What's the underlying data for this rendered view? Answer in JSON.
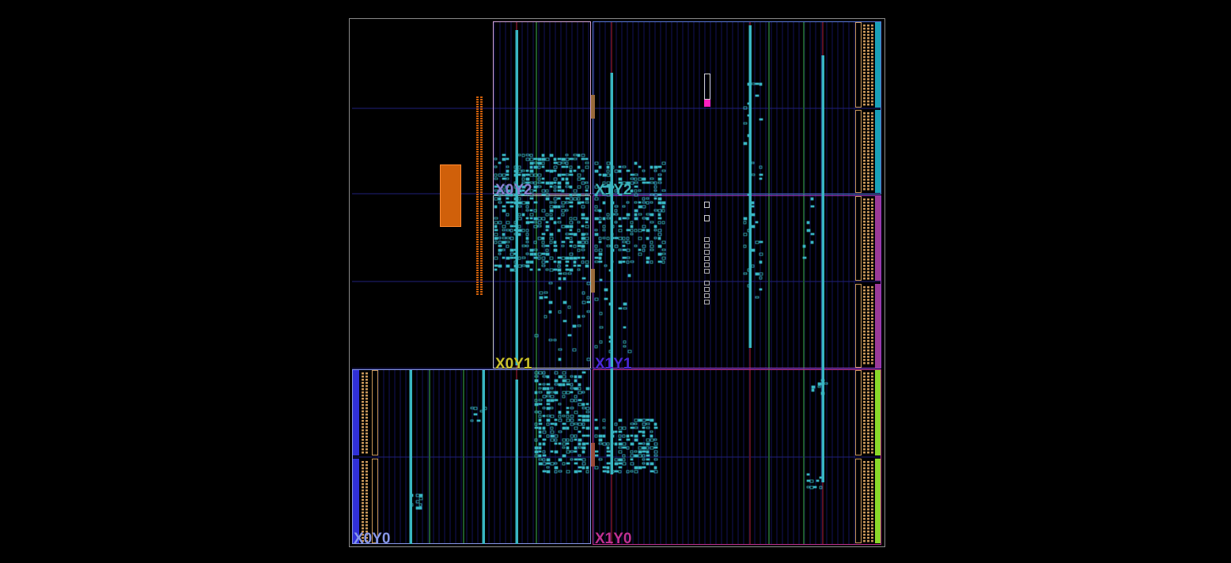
{
  "view": {
    "background": "#000000",
    "device_border": "#8a8a8a",
    "grid_color": "#1f1f7a",
    "column_color": "#12125a",
    "logic_color": "#39b6c3",
    "io_bank_color": "#c8975a",
    "io_highlight_color": "#e07020"
  },
  "clock_regions": [
    {
      "id": "X0Y2",
      "label": "X0Y2",
      "color": "#8a7fd0",
      "frame": "#d5a6d9"
    },
    {
      "id": "X1Y2",
      "label": "X1Y2",
      "color": "#3fb3b8",
      "frame": "#5a78d8"
    },
    {
      "id": "X0Y1",
      "label": "X0Y1",
      "color": "#c9c02a",
      "frame": "#c8c8c8"
    },
    {
      "id": "X1Y1",
      "label": "X1Y1",
      "color": "#4a28d8",
      "frame": "#9a3ac8"
    },
    {
      "id": "X0Y0",
      "label": "X0Y0",
      "color": "#8898e8",
      "frame": "#8898e8"
    },
    {
      "id": "X1Y0",
      "label": "X1Y0",
      "color": "#c03090",
      "frame": "#c03090"
    }
  ],
  "io_columns": {
    "right_bank_colors": [
      "#1aa0b8",
      "#1aa0b8",
      "#9a3a98",
      "#9a3a98",
      "#8ad82a",
      "#8ad82a"
    ],
    "left_bank_color": "#3030d8"
  },
  "markers": {
    "pblock_color": "#d0600a",
    "highlight_cell_color": "#ff20c0"
  }
}
